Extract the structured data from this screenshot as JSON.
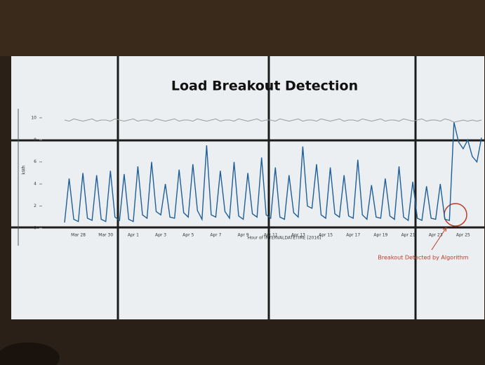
{
  "chart_data": {
    "type": "line",
    "title": "Load Breakout Detection",
    "x_label": "Hour of INTERVALDATETIME [2016]",
    "y_label": "kWh",
    "annotation": "Breakout Detected by Algorithm",
    "categories": [
      null,
      null,
      null,
      "Mar 28",
      null,
      null,
      null,
      null,
      null,
      "Mar 30",
      null,
      null,
      null,
      null,
      null,
      "Apr 1",
      null,
      null,
      null,
      null,
      null,
      "Apr 3",
      null,
      null,
      null,
      null,
      null,
      "Apr 5",
      null,
      null,
      null,
      null,
      null,
      "Apr 7",
      null,
      null,
      null,
      null,
      null,
      "Apr 9",
      null,
      null,
      null,
      null,
      null,
      "Apr 11",
      null,
      null,
      null,
      null,
      null,
      "Apr 13",
      null,
      null,
      null,
      null,
      null,
      "Apr 15",
      null,
      null,
      null,
      null,
      null,
      "Apr 17",
      null,
      null,
      null,
      null,
      null,
      "Apr 19",
      null,
      null,
      null,
      null,
      null,
      "Apr 21",
      null,
      null,
      null,
      null,
      null,
      "Apr 23",
      null,
      null,
      null,
      null,
      null,
      "Apr 25",
      null,
      null,
      null,
      null
    ],
    "series": [
      {
        "color": "#1f5f99",
        "values": [
          0.5,
          4.5,
          0.8,
          0.6,
          5.0,
          0.9,
          0.7,
          4.8,
          0.8,
          0.6,
          5.2,
          1.0,
          0.7,
          4.9,
          0.8,
          0.6,
          5.6,
          1.2,
          0.9,
          6.0,
          1.5,
          1.2,
          4.0,
          1.0,
          0.9,
          5.3,
          1.4,
          1.0,
          5.8,
          1.6,
          0.8,
          7.5,
          1.2,
          1.0,
          5.2,
          1.5,
          0.9,
          6.0,
          1.1,
          0.8,
          5.0,
          1.3,
          1.0,
          6.4,
          1.2,
          0.9,
          5.5,
          1.0,
          0.8,
          4.8,
          1.4,
          1.0,
          7.4,
          2.0,
          1.8,
          5.8,
          1.2,
          0.9,
          5.5,
          1.3,
          1.0,
          4.8,
          1.1,
          0.9,
          6.2,
          1.2,
          0.8,
          3.9,
          1.0,
          0.9,
          4.5,
          1.1,
          0.8,
          5.6,
          1.0,
          0.7,
          4.2,
          0.9,
          0.7,
          3.8,
          0.9,
          0.8,
          4.0,
          0.8,
          0.7,
          9.6,
          7.8,
          7.2,
          8.0,
          6.5,
          6.0,
          8.2
        ]
      },
      {
        "color": "#9a9a9a",
        "values": [
          9.8,
          9.7,
          9.9,
          9.8,
          9.7,
          9.8,
          9.9,
          9.7,
          9.8,
          9.8,
          9.7,
          9.9,
          9.8,
          9.7,
          9.8,
          9.9,
          9.7,
          9.8,
          9.8,
          9.7,
          9.9,
          9.8,
          9.7,
          9.8,
          9.9,
          9.7,
          9.8,
          9.8,
          9.7,
          9.9,
          9.8,
          9.7,
          9.8,
          9.9,
          9.7,
          9.8,
          9.8,
          9.7,
          9.9,
          9.8,
          9.7,
          9.8,
          9.9,
          9.7,
          9.8,
          9.8,
          9.7,
          9.9,
          9.8,
          9.7,
          9.8,
          9.9,
          9.7,
          9.8,
          9.8,
          9.7,
          9.9,
          9.8,
          9.7,
          9.8,
          9.9,
          9.7,
          9.8,
          9.8,
          9.7,
          9.9,
          9.8,
          9.7,
          9.8,
          9.9,
          9.7,
          9.8,
          9.8,
          9.7,
          9.9,
          9.8,
          9.7,
          9.8,
          9.9,
          9.7,
          9.8,
          9.8,
          9.7,
          9.9,
          9.8,
          9.6,
          9.7,
          9.8,
          9.7,
          9.8,
          9.7,
          9.8
        ]
      }
    ],
    "ylim": [
      0,
      10.5
    ],
    "yticks": [
      0,
      2,
      4,
      6,
      8,
      10
    ]
  }
}
